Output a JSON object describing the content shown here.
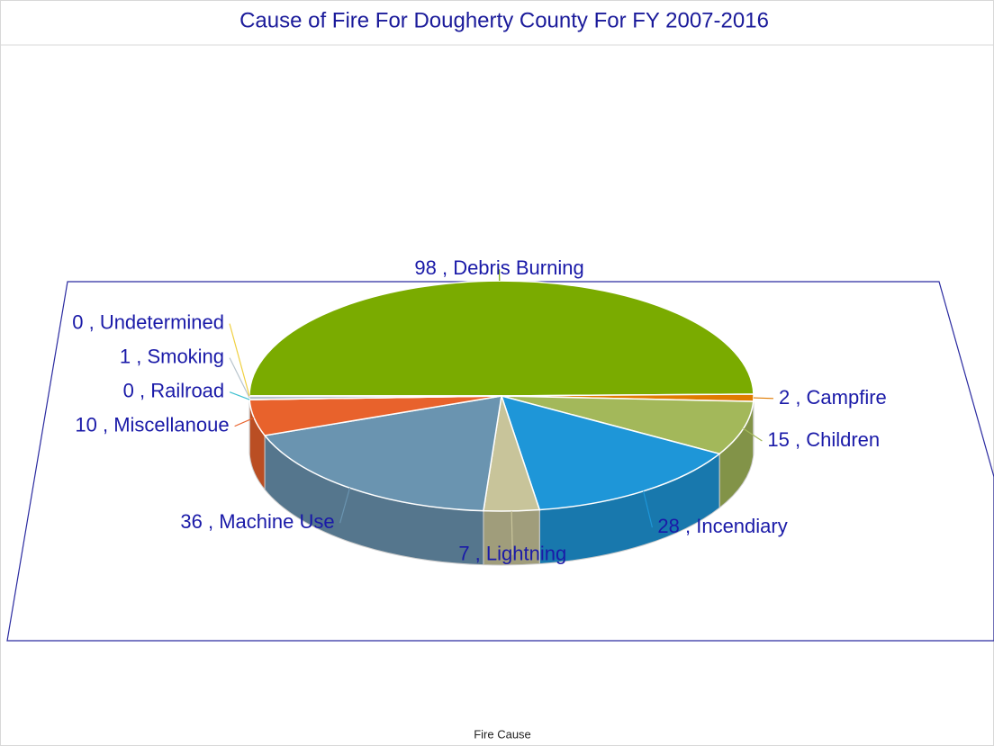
{
  "chart_data": {
    "type": "pie",
    "three_d": true,
    "title": "Cause of Fire For Dougherty County For FY 2007-2016",
    "xlabel": "Fire Cause",
    "categories": [
      "Debris Burning",
      "Campfire",
      "Children",
      "Incendiary",
      "Lightning",
      "Machine Use",
      "Miscellanoue",
      "Railroad",
      "Smoking",
      "Undetermined"
    ],
    "values": [
      98,
      2,
      15,
      28,
      7,
      36,
      10,
      0,
      1,
      0
    ],
    "colors": [
      "#7aab00",
      "#e07b00",
      "#a3b85a",
      "#1e96d8",
      "#c8c49a",
      "#6a94b0",
      "#e8622c",
      "#3ec0d0",
      "#b8c4cc",
      "#f0d040"
    ],
    "label_separator": " , "
  }
}
